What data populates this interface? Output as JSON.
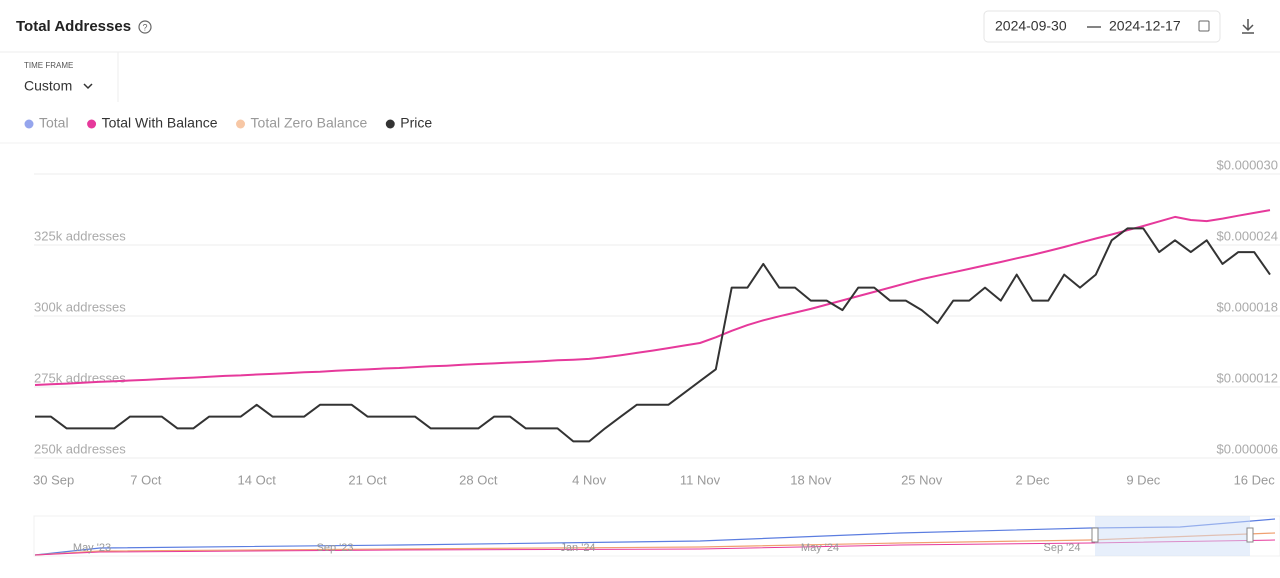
{
  "header": {
    "title": "Total Addresses",
    "date_range": {
      "start": "2024-09-30",
      "end": "2024-12-17"
    }
  },
  "controls": {
    "time_frame_label": "TIME FRAME",
    "time_frame_value": "Custom"
  },
  "chart_data": {
    "type": "line",
    "categories": [
      "30 Sep",
      null,
      null,
      null,
      null,
      null,
      null,
      "7 Oct",
      null,
      null,
      null,
      null,
      null,
      null,
      "14 Oct",
      null,
      null,
      null,
      null,
      null,
      null,
      "21 Oct",
      null,
      null,
      null,
      null,
      null,
      null,
      "28 Oct",
      null,
      null,
      null,
      null,
      null,
      null,
      "4 Nov",
      null,
      null,
      null,
      null,
      null,
      null,
      "11 Nov",
      null,
      null,
      null,
      null,
      null,
      null,
      "18 Nov",
      null,
      null,
      null,
      null,
      null,
      null,
      "25 Nov",
      null,
      null,
      null,
      null,
      null,
      null,
      "2 Dec",
      null,
      null,
      null,
      null,
      null,
      null,
      "9 Dec",
      null,
      null,
      null,
      null,
      null,
      null,
      "16 Dec",
      null
    ],
    "series": [
      {
        "name": "Total",
        "color": "#7b8fe8",
        "hidden": true
      },
      {
        "name": "Total With Balance",
        "color": "#e6399b",
        "values": [
          275700,
          276000,
          276200,
          276500,
          276800,
          277000,
          277300,
          277500,
          277800,
          278100,
          278300,
          278600,
          278900,
          279100,
          279400,
          279600,
          279900,
          280200,
          280400,
          280700,
          281000,
          281200,
          281500,
          281700,
          282000,
          282300,
          282500,
          282800,
          283100,
          283300,
          283600,
          283800,
          284100,
          284400,
          284600,
          284900,
          285500,
          286200,
          287000,
          287800,
          288700,
          289600,
          290500,
          292500,
          294800,
          296800,
          298500,
          299900,
          301200,
          302500,
          304000,
          305500,
          307000,
          308500,
          310000,
          311500,
          313000,
          314200,
          315400,
          316600,
          317800,
          319000,
          320300,
          321500,
          322900,
          324300,
          325800,
          327300,
          328700,
          330200,
          331700,
          333300,
          334900,
          333800,
          333400,
          334300,
          335300,
          336300,
          337300
        ]
      },
      {
        "name": "Total Zero Balance",
        "color": "#f5b98e",
        "hidden": true
      },
      {
        "name": "Price",
        "color": "#333333",
        "axis": "y2",
        "values": [
          9.5e-06,
          9.5e-06,
          8.5e-06,
          8.5e-06,
          8.5e-06,
          8.5e-06,
          9.5e-06,
          9.5e-06,
          9.5e-06,
          8.5e-06,
          8.5e-06,
          9.5e-06,
          9.5e-06,
          9.5e-06,
          1.05e-05,
          9.5e-06,
          9.5e-06,
          9.5e-06,
          1.05e-05,
          1.05e-05,
          1.05e-05,
          9.5e-06,
          9.5e-06,
          9.5e-06,
          9.5e-06,
          8.5e-06,
          8.5e-06,
          8.5e-06,
          8.5e-06,
          9.5e-06,
          9.5e-06,
          8.5e-06,
          8.5e-06,
          8.5e-06,
          7.4e-06,
          7.4e-06,
          8.5e-06,
          9.5e-06,
          1.05e-05,
          1.05e-05,
          1.05e-05,
          1.15e-05,
          1.25e-05,
          1.35e-05,
          2.04e-05,
          2.04e-05,
          2.24e-05,
          2.04e-05,
          2.04e-05,
          1.93e-05,
          1.93e-05,
          1.85e-05,
          2.04e-05,
          2.04e-05,
          1.93e-05,
          1.93e-05,
          1.85e-05,
          1.74e-05,
          1.93e-05,
          1.93e-05,
          2.04e-05,
          1.93e-05,
          2.15e-05,
          1.93e-05,
          1.93e-05,
          2.15e-05,
          2.04e-05,
          2.15e-05,
          2.44e-05,
          2.54e-05,
          2.54e-05,
          2.34e-05,
          2.44e-05,
          2.34e-05,
          2.44e-05,
          2.24e-05,
          2.34e-05,
          2.34e-05,
          2.15e-05
        ]
      }
    ],
    "ylim": [
      250000,
      350000
    ],
    "yticks": [
      {
        "value": 250000,
        "label": "250k addresses"
      },
      {
        "value": 275000,
        "label": "275k addresses"
      },
      {
        "value": 300000,
        "label": "300k addresses"
      },
      {
        "value": 325000,
        "label": "325k addresses"
      }
    ],
    "y2lim": [
      6e-06,
      3e-05
    ],
    "y2ticks": [
      {
        "value": 6e-06,
        "label": "$0.000006"
      },
      {
        "value": 1.2e-05,
        "label": "$0.000012"
      },
      {
        "value": 1.8e-05,
        "label": "$0.000018"
      },
      {
        "value": 2.4e-05,
        "label": "$0.000024"
      },
      {
        "value": 3e-05,
        "label": "$0.000030"
      }
    ],
    "grid": true,
    "navigator_labels": [
      "May '23",
      "Sep '23",
      "Jan '24",
      "May '24",
      "Sep '24"
    ]
  }
}
